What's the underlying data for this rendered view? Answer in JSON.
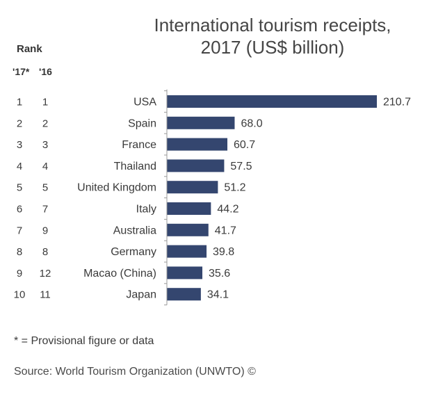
{
  "title_line1": "International tourism receipts,",
  "title_line2": "2017 (US$ billion)",
  "rank_header": "Rank",
  "col_2017": "'17*",
  "col_2016": "'16",
  "footnote": "* = Provisional figure or data",
  "source": "Source: World Tourism Organization (UNWTO) ©",
  "colors": {
    "bar": "#34466f",
    "axis": "#999999"
  },
  "chart_data": {
    "type": "bar",
    "orientation": "horizontal",
    "title": "International tourism receipts, 2017 (US$ billion)",
    "categories": [
      "USA",
      "Spain",
      "France",
      "Thailand",
      "United Kingdom",
      "Italy",
      "Australia",
      "Germany",
      "Macao (China)",
      "Japan"
    ],
    "values": [
      210.7,
      68.0,
      60.7,
      57.5,
      51.2,
      44.2,
      41.7,
      39.8,
      35.6,
      34.1
    ],
    "value_labels": [
      "210.7",
      "68.0",
      "60.7",
      "57.5",
      "51.2",
      "44.2",
      "41.7",
      "39.8",
      "35.6",
      "34.1"
    ],
    "rank_2017": [
      "1",
      "2",
      "3",
      "4",
      "5",
      "6",
      "7",
      "8",
      "9",
      "10"
    ],
    "rank_2016": [
      "1",
      "2",
      "3",
      "4",
      "5",
      "7",
      "9",
      "8",
      "12",
      "11"
    ],
    "xlim": [
      0,
      210.7
    ],
    "grid": false,
    "legend": "none"
  }
}
